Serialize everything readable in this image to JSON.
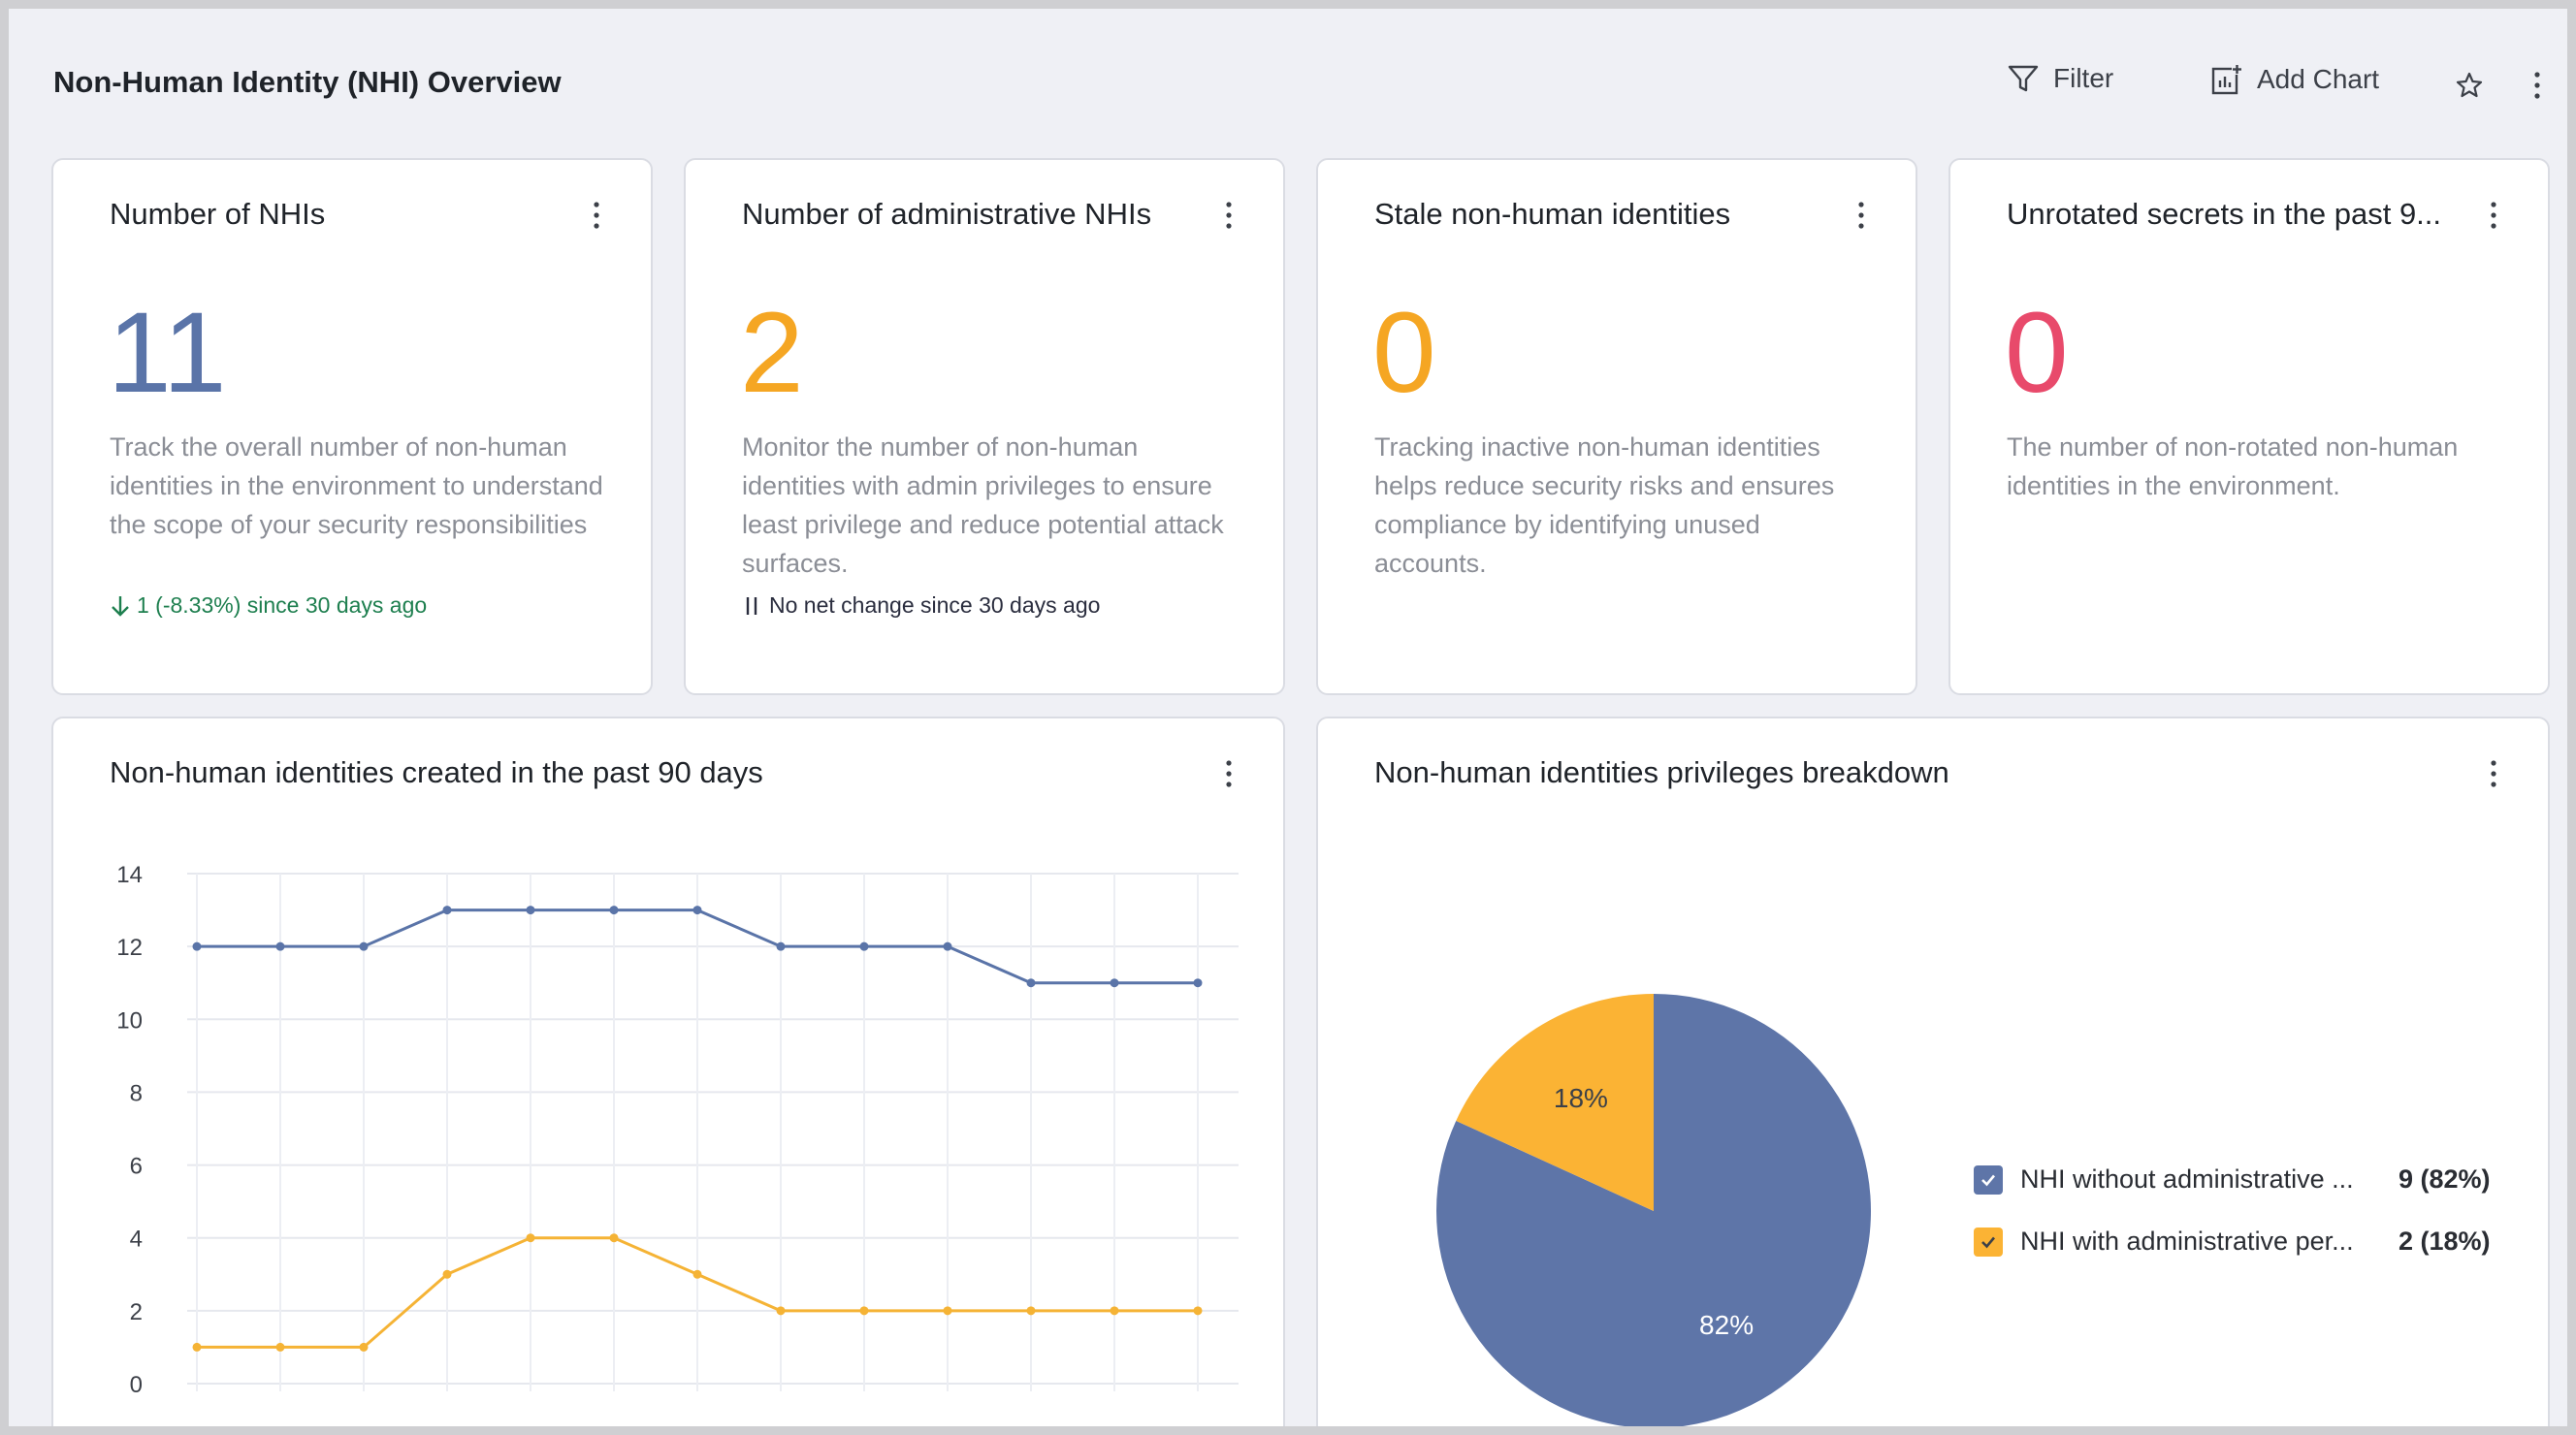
{
  "page": {
    "title": "Non-Human Identity (NHI) Overview",
    "filter_label": "Filter",
    "add_chart_label": "Add Chart"
  },
  "kpis": [
    {
      "title": "Number of NHIs",
      "value": "11",
      "color": "#5a74a8",
      "description": "Track the overall number of non-human identities in the environment to understand the scope of your security responsibilities",
      "trend": "1 (-8.33%) since 30 days ago",
      "trend_icon": "arrow-down-icon",
      "trend_color": "#1e7f4f"
    },
    {
      "title": "Number of administrative NHIs",
      "value": "2",
      "color": "#f5a623",
      "description": "Monitor the number of non-human identities with admin privileges to ensure least privilege and reduce potential attack surfaces.",
      "trend": "No net change since 30 days ago",
      "trend_icon": "no-change-icon",
      "trend_color": "#2a2d3e"
    },
    {
      "title": "Stale non-human identities",
      "value": "0",
      "color": "#f5a623",
      "description": "Tracking inactive non-human identities helps reduce security risks and ensures compliance by identifying unused accounts."
    },
    {
      "title": "Unrotated secrets in the past 9...",
      "value": "0",
      "color": "#e84a6b",
      "description": "The number of non-rotated non-human identities in the environment."
    }
  ],
  "line_card": {
    "title": "Non-human identities created in the past 90 days"
  },
  "pie_card": {
    "title": "Non-human identities privileges breakdown"
  },
  "chart_data": [
    {
      "type": "line",
      "title": "Non-human identities created in the past 90 days",
      "ylim": [
        0,
        14
      ],
      "yticks": [
        0,
        2,
        4,
        6,
        8,
        10,
        12,
        14
      ],
      "grid": true,
      "series": [
        {
          "color": "#5a74a8",
          "values": [
            12,
            12,
            12,
            13,
            13,
            13,
            13,
            12,
            12,
            12,
            11,
            11,
            11
          ]
        },
        {
          "color": "#f5b335",
          "values": [
            1,
            1,
            1,
            3,
            4,
            4,
            3,
            2,
            2,
            2,
            2,
            2,
            2
          ]
        }
      ]
    },
    {
      "type": "pie",
      "title": "Non-human identities privileges breakdown",
      "legend_position": "right",
      "slices": [
        {
          "label": "NHI without administrative ...",
          "value": 9,
          "percent": 82,
          "display": "9 (82%)",
          "pct_label": "82%",
          "color": "#5e75a8"
        },
        {
          "label": "NHI with administrative per...",
          "value": 2,
          "percent": 18,
          "display": "2 (18%)",
          "pct_label": "18%",
          "color": "#fbb334"
        }
      ]
    }
  ]
}
